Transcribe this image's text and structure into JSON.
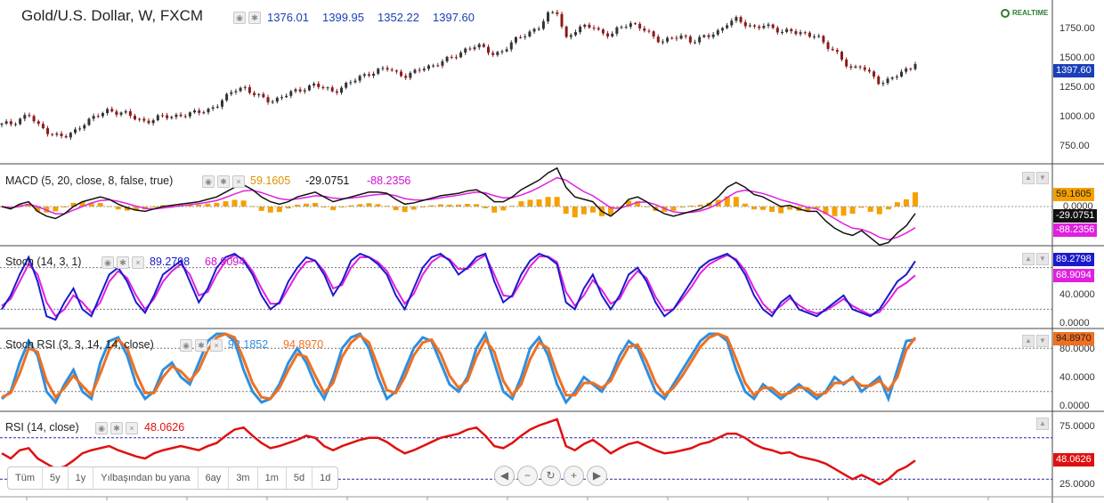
{
  "header": {
    "title": "Gold/U.S. Dollar, W, FXCM",
    "open": "1376.01",
    "high": "1399.95",
    "low": "1352.22",
    "close": "1397.60",
    "realtime_label": "REALTIME"
  },
  "indicators": {
    "macd": {
      "title": "MACD (5, 20, close, 8, false, true)",
      "v1": "59.1605",
      "v2": "-29.0751",
      "v3": "-88.2356"
    },
    "stoch": {
      "title": "Stoch (14, 3, 1)",
      "v1": "89.2798",
      "v2": "68.9094"
    },
    "stochrsi": {
      "title": "Stoch RSI (3, 3, 14, 14, close)",
      "v1": "92.1852",
      "v2": "94.8970"
    },
    "rsi": {
      "title": "RSI (14, close)",
      "v1": "48.0626"
    }
  },
  "axes": {
    "price": [
      "1750.00",
      "1500.00",
      "1250.00",
      "1000.00",
      "750.00"
    ],
    "macd": [
      "0.0000"
    ],
    "stoch": [
      "40.0000",
      "0.0000"
    ],
    "stochrsi": [
      "80.0000",
      "40.0000",
      "0.0000"
    ],
    "rsi": [
      "75.0000",
      "25.0000"
    ]
  },
  "tags": {
    "price": "1397.60",
    "macd_hist": "59.1605",
    "macd_line": "-29.0751",
    "macd_signal": "-88.2356",
    "stoch_k": "89.2798",
    "stoch_d": "68.9094",
    "stochrsi": "94.8970",
    "rsi": "48.0626"
  },
  "range_buttons": [
    "Tüm",
    "5y",
    "1y",
    "Yılbaşından bu yana",
    "6ay",
    "3m",
    "1m",
    "5d",
    "1d"
  ],
  "colors": {
    "up": "#333333",
    "down": "#8b1a1a",
    "macd_line": "#111111",
    "macd_signal": "#e020e0",
    "macd_hist": "#f5a000",
    "stoch_k": "#1a1acc",
    "stoch_d": "#e020e0",
    "srsi_k": "#2f8fdf",
    "srsi_d": "#f07020",
    "rsi": "#e01010"
  },
  "chart_data": [
    {
      "type": "line",
      "title": "Gold/U.S. Dollar, W, FXCM",
      "series": [
        {
          "name": "Close",
          "values": [
            870,
            880,
            920,
            960,
            860,
            820,
            780,
            760,
            800,
            880,
            920,
            960,
            1000,
            980,
            960,
            920,
            900,
            920,
            940,
            940,
            960,
            960,
            980,
            1000,
            1040,
            1100,
            1180,
            1200,
            1140,
            1100,
            1080,
            1100,
            1140,
            1160,
            1200,
            1220,
            1180,
            1160,
            1200,
            1240,
            1280,
            1320,
            1340,
            1360,
            1320,
            1300,
            1320,
            1360,
            1380,
            1420,
            1440,
            1480,
            1540,
            1560,
            1520,
            1480,
            1520,
            1580,
            1640,
            1680,
            1720,
            1820,
            1860,
            1620,
            1680,
            1720,
            1740,
            1660,
            1640,
            1720,
            1760,
            1720,
            1680,
            1620,
            1600,
            1620,
            1640,
            1600,
            1620,
            1640,
            1680,
            1760,
            1780,
            1740,
            1720,
            1740,
            1700,
            1680,
            1700,
            1660,
            1640,
            1660,
            1560,
            1500,
            1420,
            1360,
            1380,
            1300,
            1240,
            1260,
            1300,
            1340,
            1397.6
          ]
        }
      ],
      "ylim": [
        600,
        1900
      ]
    },
    {
      "type": "line",
      "title": "MACD (5, 20, close, 8, false, true)",
      "series": [
        {
          "name": "MACD",
          "values": [
            0,
            -10,
            10,
            20,
            -20,
            -40,
            -50,
            -30,
            0,
            20,
            30,
            40,
            30,
            10,
            -5,
            -15,
            -20,
            -10,
            0,
            5,
            10,
            15,
            20,
            30,
            40,
            60,
            80,
            90,
            70,
            40,
            20,
            10,
            20,
            40,
            50,
            60,
            40,
            20,
            30,
            40,
            50,
            60,
            60,
            55,
            30,
            10,
            15,
            25,
            35,
            45,
            50,
            55,
            65,
            70,
            50,
            20,
            20,
            40,
            70,
            90,
            110,
            140,
            160,
            80,
            40,
            30,
            20,
            -20,
            -40,
            -10,
            30,
            40,
            20,
            -10,
            -30,
            -40,
            -30,
            -20,
            -10,
            10,
            40,
            80,
            100,
            80,
            50,
            40,
            20,
            0,
            5,
            -10,
            -20,
            -20,
            -60,
            -90,
            -110,
            -120,
            -100,
            -130,
            -160,
            -150,
            -110,
            -80,
            -29.0751
          ]
        },
        {
          "name": "Signal",
          "values": [
            0,
            -5,
            0,
            10,
            0,
            -15,
            -30,
            -30,
            -15,
            0,
            15,
            25,
            28,
            22,
            12,
            2,
            -8,
            -10,
            -6,
            -2,
            3,
            8,
            12,
            18,
            25,
            38,
            52,
            65,
            68,
            58,
            45,
            33,
            28,
            32,
            38,
            45,
            43,
            35,
            33,
            35,
            40,
            46,
            50,
            52,
            45,
            33,
            28,
            27,
            30,
            36,
            42,
            47,
            54,
            60,
            57,
            45,
            36,
            37,
            48,
            62,
            80,
            100,
            120,
            110,
            85,
            62,
            45,
            20,
            -5,
            -8,
            5,
            18,
            19,
            8,
            -8,
            -22,
            -26,
            -24,
            -18,
            -6,
            12,
            38,
            60,
            68,
            62,
            54,
            42,
            28,
            18,
            8,
            -3,
            -10,
            -28,
            -50,
            -72,
            -90,
            -95,
            -108,
            -128,
            -138,
            -128,
            -110,
            -88.2356
          ]
        },
        {
          "name": "Histogram",
          "values": [
            0,
            -5,
            10,
            10,
            -20,
            -25,
            -20,
            0,
            15,
            20,
            15,
            15,
            2,
            -12,
            -17,
            -17,
            -12,
            0,
            6,
            7,
            7,
            7,
            8,
            12,
            15,
            22,
            28,
            25,
            2,
            -18,
            -25,
            -23,
            -8,
            8,
            12,
            15,
            -3,
            -15,
            -3,
            5,
            10,
            14,
            10,
            3,
            -15,
            -23,
            -13,
            -2,
            5,
            9,
            8,
            8,
            11,
            10,
            -7,
            -25,
            -16,
            3,
            22,
            28,
            30,
            40,
            40,
            -30,
            -45,
            -32,
            -25,
            -40,
            -35,
            -2,
            25,
            22,
            1,
            -18,
            -22,
            -18,
            -4,
            4,
            8,
            16,
            28,
            42,
            40,
            12,
            -12,
            -14,
            -22,
            -28,
            -13,
            -18,
            -17,
            -10,
            -32,
            -40,
            -38,
            -30,
            -5,
            -22,
            -32,
            -12,
            18,
            30,
            59.1605
          ]
        }
      ]
    },
    {
      "type": "line",
      "title": "Stoch (14, 3, 1)",
      "series": [
        {
          "name": "%K",
          "values": [
            20,
            40,
            70,
            95,
            60,
            10,
            5,
            30,
            50,
            20,
            10,
            40,
            70,
            80,
            60,
            30,
            15,
            40,
            70,
            80,
            90,
            60,
            30,
            50,
            80,
            95,
            100,
            90,
            70,
            40,
            20,
            30,
            60,
            80,
            95,
            90,
            70,
            40,
            60,
            90,
            100,
            95,
            85,
            70,
            40,
            20,
            50,
            80,
            95,
            100,
            90,
            70,
            80,
            95,
            100,
            60,
            30,
            40,
            70,
            90,
            100,
            95,
            85,
            30,
            20,
            50,
            70,
            40,
            20,
            40,
            70,
            80,
            60,
            30,
            10,
            20,
            40,
            60,
            80,
            90,
            95,
            100,
            90,
            70,
            40,
            20,
            10,
            30,
            40,
            20,
            15,
            10,
            20,
            30,
            40,
            20,
            15,
            10,
            20,
            40,
            60,
            70,
            89.2798
          ]
        },
        {
          "name": "%D",
          "values": [
            25,
            35,
            60,
            85,
            70,
            30,
            10,
            20,
            40,
            30,
            15,
            30,
            60,
            75,
            65,
            40,
            20,
            35,
            60,
            75,
            85,
            70,
            40,
            45,
            70,
            90,
            98,
            92,
            75,
            50,
            28,
            28,
            50,
            72,
            88,
            90,
            75,
            50,
            55,
            80,
            95,
            95,
            88,
            75,
            50,
            28,
            42,
            70,
            88,
            97,
            92,
            78,
            78,
            90,
            98,
            70,
            40,
            38,
            60,
            82,
            96,
            96,
            88,
            45,
            25,
            40,
            62,
            48,
            28,
            35,
            60,
            75,
            65,
            38,
            18,
            20,
            35,
            52,
            72,
            85,
            92,
            98,
            92,
            76,
            50,
            28,
            15,
            25,
            36,
            26,
            18,
            14,
            18,
            26,
            35,
            25,
            18,
            12,
            16,
            32,
            50,
            58,
            68.9094
          ]
        }
      ],
      "ylim": [
        0,
        100
      ]
    },
    {
      "type": "line",
      "title": "Stoch RSI (3, 3, 14, 14, close)",
      "series": [
        {
          "name": "K",
          "values": [
            10,
            20,
            60,
            90,
            70,
            20,
            5,
            30,
            50,
            20,
            10,
            60,
            90,
            95,
            70,
            30,
            10,
            20,
            50,
            60,
            40,
            30,
            60,
            90,
            100,
            100,
            90,
            50,
            20,
            5,
            10,
            30,
            60,
            80,
            60,
            30,
            10,
            40,
            80,
            95,
            100,
            80,
            40,
            10,
            20,
            50,
            80,
            95,
            90,
            60,
            30,
            20,
            40,
            80,
            100,
            60,
            20,
            10,
            40,
            80,
            95,
            70,
            30,
            5,
            20,
            40,
            30,
            20,
            40,
            70,
            90,
            80,
            50,
            20,
            10,
            30,
            50,
            70,
            90,
            100,
            100,
            90,
            50,
            20,
            10,
            30,
            20,
            10,
            20,
            30,
            20,
            10,
            20,
            40,
            30,
            40,
            20,
            30,
            40,
            10,
            50,
            90,
            92.1852
          ]
        },
        {
          "name": "D",
          "values": [
            12,
            18,
            45,
            80,
            75,
            35,
            12,
            25,
            42,
            28,
            15,
            45,
            78,
            92,
            80,
            45,
            18,
            18,
            40,
            55,
            48,
            35,
            50,
            78,
            95,
            100,
            95,
            65,
            32,
            12,
            10,
            25,
            50,
            72,
            68,
            42,
            18,
            32,
            68,
            88,
            98,
            88,
            55,
            22,
            18,
            40,
            70,
            88,
            92,
            72,
            42,
            25,
            35,
            68,
            92,
            75,
            35,
            15,
            30,
            65,
            88,
            80,
            45,
            15,
            15,
            32,
            32,
            25,
            35,
            60,
            82,
            85,
            62,
            32,
            15,
            25,
            42,
            62,
            82,
            95,
            100,
            95,
            65,
            32,
            15,
            25,
            25,
            15,
            18,
            26,
            24,
            15,
            18,
            32,
            32,
            38,
            28,
            28,
            35,
            22,
            40,
            78,
            94.897
          ]
        }
      ],
      "ylim": [
        0,
        100
      ]
    },
    {
      "type": "line",
      "title": "RSI (14, close)",
      "series": [
        {
          "name": "RSI",
          "values": [
            55,
            50,
            58,
            60,
            50,
            45,
            40,
            42,
            48,
            55,
            58,
            60,
            62,
            58,
            55,
            52,
            50,
            55,
            58,
            60,
            62,
            60,
            58,
            62,
            65,
            72,
            78,
            80,
            72,
            65,
            60,
            62,
            65,
            68,
            72,
            70,
            62,
            58,
            62,
            65,
            68,
            70,
            70,
            66,
            60,
            55,
            58,
            62,
            66,
            70,
            72,
            74,
            78,
            80,
            72,
            62,
            60,
            65,
            72,
            78,
            82,
            85,
            88,
            62,
            58,
            64,
            68,
            62,
            55,
            60,
            64,
            66,
            62,
            58,
            55,
            56,
            58,
            60,
            64,
            66,
            70,
            74,
            74,
            70,
            64,
            60,
            58,
            55,
            56,
            52,
            50,
            48,
            45,
            40,
            35,
            30,
            34,
            30,
            25,
            30,
            38,
            42,
            48.0626
          ]
        }
      ],
      "ylim": [
        15,
        85
      ]
    }
  ]
}
